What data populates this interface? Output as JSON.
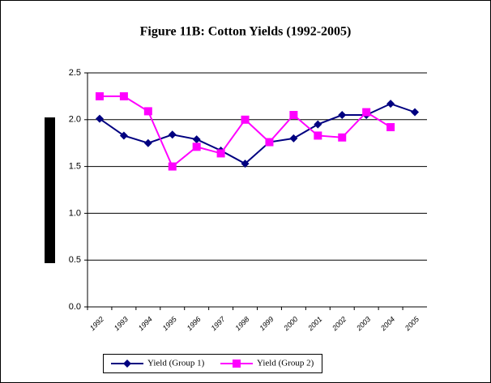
{
  "chart_data": {
    "type": "line",
    "title": "Figure 11B: Cotton Yields (1992-2005)",
    "categories": [
      "1992",
      "1993",
      "1994",
      "1995",
      "1996",
      "1997",
      "1998",
      "1999",
      "2000",
      "2001",
      "2002",
      "2003",
      "2004",
      "2005"
    ],
    "series": [
      {
        "name": "Yield (Group 1)",
        "color": "#000080",
        "marker": "diamond",
        "values": [
          2.01,
          1.83,
          1.75,
          1.84,
          1.79,
          1.67,
          1.53,
          1.76,
          1.8,
          1.95,
          2.05,
          2.05,
          2.17,
          2.08
        ]
      },
      {
        "name": "Yield (Group 2)",
        "color": "#ff00ff",
        "marker": "square",
        "values": [
          2.25,
          2.25,
          2.09,
          1.5,
          1.71,
          1.64,
          2.0,
          1.76,
          2.05,
          1.83,
          1.81,
          2.08,
          1.92,
          null
        ]
      }
    ],
    "ylim": [
      0,
      2.5
    ],
    "yticks": [
      {
        "value": 0,
        "label": "0.0"
      },
      0.5,
      {
        "value": 1,
        "label": "1.0"
      },
      1.5,
      {
        "value": 2,
        "label": "2.0"
      },
      2.5
    ],
    "grid": true,
    "legend": "bottom"
  }
}
